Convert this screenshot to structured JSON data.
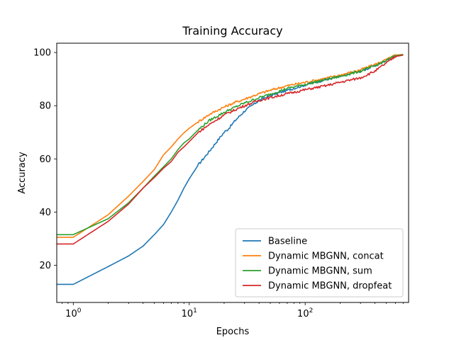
{
  "chart_data": {
    "type": "line",
    "title": "Training Accuracy",
    "xlabel": "Epochs",
    "ylabel": "Accuracy",
    "xscale": "log",
    "xlim": [
      0.72,
      780
    ],
    "ylim": [
      6,
      103.5
    ],
    "xticks": [
      {
        "value": 1,
        "base": "10",
        "exp": "0"
      },
      {
        "value": 10,
        "base": "10",
        "exp": "1"
      },
      {
        "value": 100,
        "base": "10",
        "exp": "2"
      }
    ],
    "yticks": [
      {
        "value": 20,
        "label": "20"
      },
      {
        "value": 40,
        "label": "40"
      },
      {
        "value": 60,
        "label": "60"
      },
      {
        "value": 80,
        "label": "80"
      },
      {
        "value": 100,
        "label": "100"
      }
    ],
    "grid": false,
    "legend_position": "lower right",
    "series": [
      {
        "name": "Baseline",
        "color": "#1f77b4",
        "x": [
          0.72,
          1,
          2,
          3,
          4,
          5,
          6,
          7,
          8,
          9,
          10,
          12,
          15,
          18,
          20,
          22,
          25,
          30,
          40,
          50,
          70,
          100,
          150,
          200,
          300,
          400,
          500,
          600,
          700
        ],
        "y": [
          12.8,
          12.8,
          19.5,
          23.5,
          27.2,
          31.5,
          35.3,
          40.0,
          44.5,
          49.0,
          52.5,
          57.8,
          63.0,
          67.5,
          70.0,
          71.5,
          74.5,
          78.0,
          82.0,
          83.8,
          85.8,
          87.8,
          89.8,
          91.0,
          93.0,
          95.0,
          97.0,
          98.7,
          99.2
        ]
      },
      {
        "name": "Dynamic MBGNN, concat",
        "color": "#ff7f0e",
        "x": [
          0.72,
          1,
          2,
          3,
          4,
          5,
          6,
          7,
          8,
          9,
          10,
          12,
          15,
          20,
          25,
          30,
          40,
          50,
          70,
          100,
          150,
          200,
          300,
          400,
          500,
          600,
          700
        ],
        "y": [
          30.5,
          30.5,
          39.0,
          46.0,
          51.5,
          56.0,
          61.5,
          64.5,
          67.5,
          69.8,
          71.5,
          74.0,
          76.8,
          79.5,
          81.3,
          82.5,
          84.5,
          85.8,
          87.5,
          88.8,
          90.3,
          91.5,
          93.5,
          95.5,
          97.3,
          99.0,
          99.3
        ]
      },
      {
        "name": "Dynamic MBGNN, sum",
        "color": "#2ca02c",
        "x": [
          0.72,
          1,
          2,
          3,
          4,
          5,
          6,
          7,
          8,
          9,
          10,
          12,
          15,
          20,
          25,
          30,
          40,
          50,
          70,
          100,
          150,
          200,
          300,
          400,
          500,
          600,
          700
        ],
        "y": [
          31.5,
          31.5,
          37.5,
          43.5,
          49.0,
          53.5,
          57.0,
          60.0,
          63.5,
          66.0,
          67.5,
          71.0,
          74.5,
          77.5,
          79.5,
          81.0,
          83.0,
          84.3,
          86.5,
          88.0,
          89.8,
          91.0,
          93.0,
          95.0,
          97.0,
          98.8,
          99.2
        ]
      },
      {
        "name": "Dynamic MBGNN, dropfeat",
        "color": "#d62728",
        "x": [
          0.72,
          1,
          2,
          3,
          4,
          5,
          6,
          7,
          8,
          9,
          10,
          12,
          15,
          20,
          25,
          30,
          40,
          50,
          70,
          100,
          150,
          200,
          300,
          400,
          500,
          600,
          700
        ],
        "y": [
          28.0,
          28.0,
          36.5,
          43.0,
          49.0,
          53.0,
          56.5,
          59.0,
          62.5,
          64.5,
          66.5,
          70.0,
          73.0,
          76.5,
          78.5,
          80.0,
          82.0,
          83.0,
          84.5,
          86.0,
          87.5,
          88.8,
          90.5,
          93.0,
          96.0,
          98.5,
          99.0
        ]
      }
    ]
  }
}
